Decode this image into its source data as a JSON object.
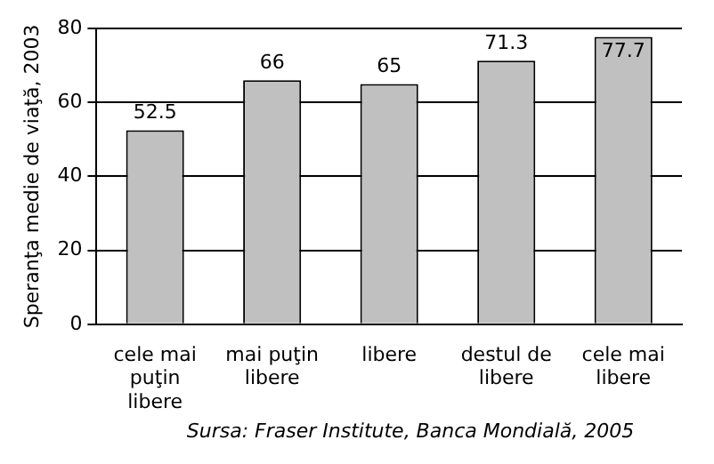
{
  "chart_data": {
    "type": "bar",
    "ylabel": "Speranţa medie de viaţă, 2003",
    "categories": [
      "cele mai puţin libere",
      "mai puţin libere",
      "libere",
      "destul de libere",
      "cele mai libere"
    ],
    "values": [
      52.5,
      66,
      65,
      71.3,
      77.7
    ],
    "color": "#c0c0c0",
    "ylim": [
      0,
      80
    ],
    "yticks": [
      0,
      20,
      40,
      60,
      80
    ],
    "grid": "y",
    "data_labels": true,
    "legend": false,
    "annotations": [
      "Sursa: Fraser Institute, Banca Mondială, 2005"
    ]
  }
}
